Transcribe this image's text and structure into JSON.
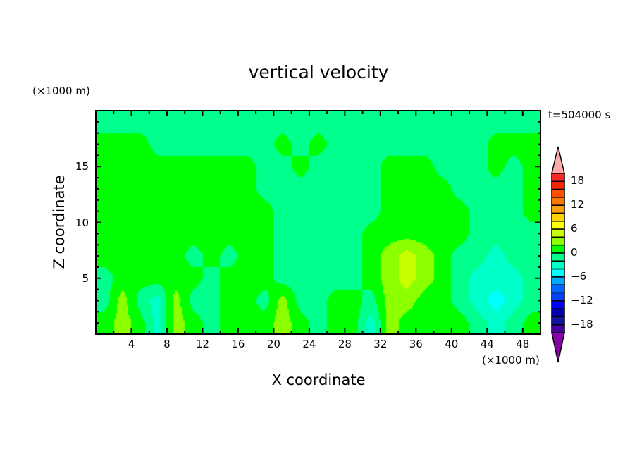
{
  "chart_data": {
    "type": "heatmap",
    "title": "vertical velocity",
    "xlabel": "X coordinate",
    "ylabel": "Z coordinate",
    "x_unit": "(×1000 m)",
    "y_unit": "(×1000 m)",
    "annotation": "t=504000 s",
    "xlim": [
      0,
      50
    ],
    "ylim": [
      0,
      20
    ],
    "x_ticks": [
      4,
      8,
      12,
      16,
      20,
      24,
      28,
      32,
      36,
      40,
      44,
      48
    ],
    "y_ticks": [
      5,
      10,
      15
    ],
    "grid": false,
    "colorbar": {
      "levels_min": -20,
      "levels_max": 20,
      "step": 2,
      "tick_labels": [
        "18",
        "12",
        "6",
        "0",
        "−6",
        "−12",
        "−18"
      ],
      "tick_values": [
        18,
        12,
        6,
        0,
        -6,
        -12,
        -18
      ],
      "colors_top_to_bottom": [
        "#ff2828",
        "#ff2400",
        "#ff5000",
        "#ff7800",
        "#ffa000",
        "#ffd200",
        "#ffff00",
        "#c8ff00",
        "#8cff00",
        "#00ff00",
        "#00ff8c",
        "#00ffc8",
        "#00ffff",
        "#00aaff",
        "#0064ff",
        "#0040ff",
        "#0000ff",
        "#0000aa",
        "#1414a0",
        "#4600a0"
      ],
      "over_color": "#ffaaaa",
      "under_color": "#8c00aa"
    },
    "grid_x": [
      1,
      3,
      5,
      7,
      9,
      11,
      13,
      15,
      17,
      19,
      21,
      23,
      25,
      27,
      29,
      31,
      33,
      35,
      37,
      39,
      41,
      43,
      45,
      47,
      49
    ],
    "grid_z": [
      19,
      17,
      15,
      13,
      11,
      9,
      7,
      5,
      3,
      1
    ],
    "values": [
      [
        -1,
        -1,
        -1,
        -1,
        -1,
        -1,
        -1,
        -1,
        -1,
        -1,
        -1,
        -1,
        -1,
        -1,
        -1,
        -1,
        -1,
        -1,
        -1,
        -1,
        -1,
        -1,
        -1,
        -1,
        -1
      ],
      [
        1,
        1,
        1,
        -1,
        -1,
        -1,
        -1,
        -1,
        -1,
        -1,
        1,
        -1,
        1,
        -1,
        -1,
        -1,
        -1,
        -1,
        -1,
        -1,
        -1,
        -1,
        1,
        1,
        1
      ],
      [
        1,
        1,
        1,
        1,
        1,
        1,
        1,
        1,
        1,
        -1,
        -1,
        1,
        -1,
        -1,
        -1,
        -1,
        1,
        1,
        1,
        -1,
        -1,
        -1,
        1,
        -1,
        1
      ],
      [
        1,
        1,
        1,
        1,
        1,
        1,
        1,
        1,
        1,
        -1,
        -1,
        -1,
        -1,
        -1,
        -1,
        -1,
        1,
        1,
        1,
        1,
        -1,
        -1,
        -1,
        -1,
        1
      ],
      [
        1,
        1,
        1,
        1,
        1,
        1,
        1,
        1,
        1,
        1,
        -1,
        -1,
        -1,
        -1,
        -1,
        -1,
        1,
        1,
        1,
        1,
        1,
        -1,
        -1,
        -1,
        1
      ],
      [
        1,
        1,
        1,
        1,
        1,
        1,
        1,
        1,
        1,
        1,
        -1,
        -1,
        -1,
        -1,
        -1,
        1,
        1,
        1,
        1,
        1,
        1,
        -1,
        -1,
        -1,
        -1
      ],
      [
        1,
        1,
        1,
        1,
        1,
        -1,
        1,
        -1,
        1,
        1,
        -1,
        -1,
        -1,
        -1,
        -1,
        1,
        3,
        5,
        3,
        1,
        -1,
        -1,
        -3,
        -1,
        -1
      ],
      [
        -1,
        1,
        1,
        1,
        1,
        1,
        -1,
        1,
        1,
        1,
        -1,
        -1,
        -1,
        -1,
        -1,
        1,
        3,
        5,
        3,
        1,
        -1,
        -3,
        -3,
        -3,
        -1
      ],
      [
        -1,
        3,
        -1,
        -3,
        3,
        -1,
        -1,
        1,
        1,
        -1,
        3,
        -1,
        -1,
        1,
        1,
        -1,
        3,
        3,
        1,
        1,
        -1,
        -3,
        -5,
        -3,
        -1
      ],
      [
        1,
        3,
        1,
        -3,
        3,
        1,
        -1,
        1,
        1,
        1,
        3,
        1,
        -1,
        1,
        1,
        -3,
        3,
        1,
        1,
        1,
        1,
        -1,
        -3,
        -1,
        1
      ]
    ]
  }
}
